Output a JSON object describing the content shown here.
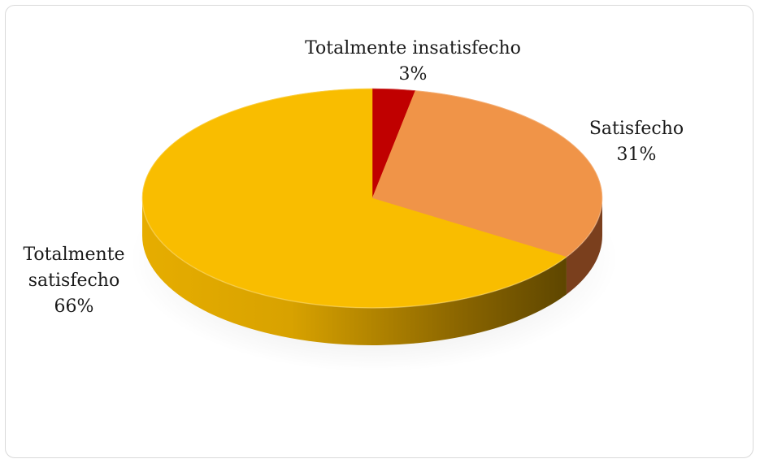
{
  "chart_data": {
    "type": "pie",
    "style": "3d",
    "slices": [
      {
        "label": "Totalmente insatisfecho",
        "value": 3,
        "percent_label": "3%",
        "color": "#c00000",
        "side_color": "#6e0000"
      },
      {
        "label": "Satisfecho",
        "value": 31,
        "percent_label": "31%",
        "color": "#f09448",
        "side_color": "#7a3f1d"
      },
      {
        "label": "Totalmente satisfecho",
        "value": 66,
        "percent_label": "66%",
        "color": "#f9bd00",
        "side_color": "#b38600"
      }
    ],
    "data_labels": {
      "insatisfecho_line1": "Totalmente insatisfecho",
      "insatisfecho_line2": "3%",
      "satisfecho_line1": "Satisfecho",
      "satisfecho_line2": "31%",
      "tot_satisfecho_line1": "Totalmente",
      "tot_satisfecho_line2": "satisfecho",
      "tot_satisfecho_line3": "66%"
    },
    "legend": "none",
    "start_angle": "top",
    "direction": "clockwise"
  }
}
